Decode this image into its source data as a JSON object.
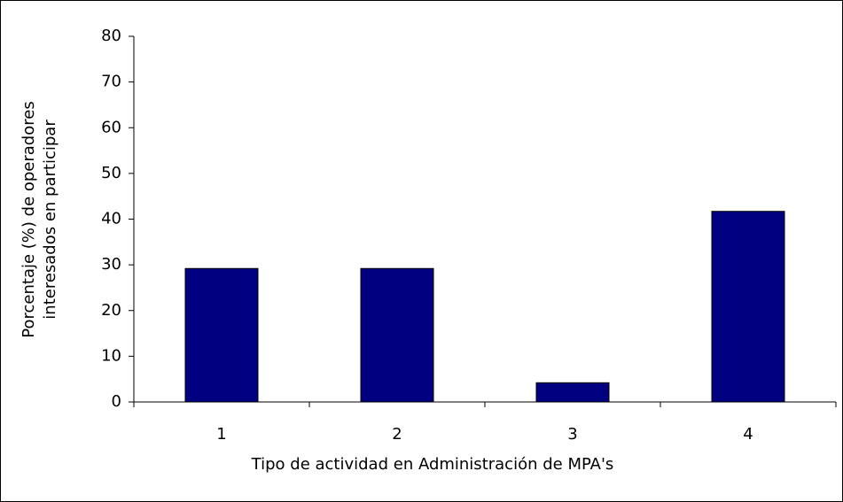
{
  "chart_data": {
    "type": "bar",
    "ylabel": [
      "Porcentaje (%) de operadores",
      "interesados en participar"
    ],
    "xlabel": "Tipo de actividad en Administración de MPA's",
    "categories": [
      "1",
      "2",
      "3",
      "4"
    ],
    "values": [
      29.2,
      29.2,
      4.2,
      41.7
    ],
    "color": "#000080",
    "ylim": [
      0,
      80
    ],
    "yticks": [
      0,
      10,
      20,
      30,
      40,
      50,
      60,
      70,
      80
    ],
    "grid": false
  }
}
